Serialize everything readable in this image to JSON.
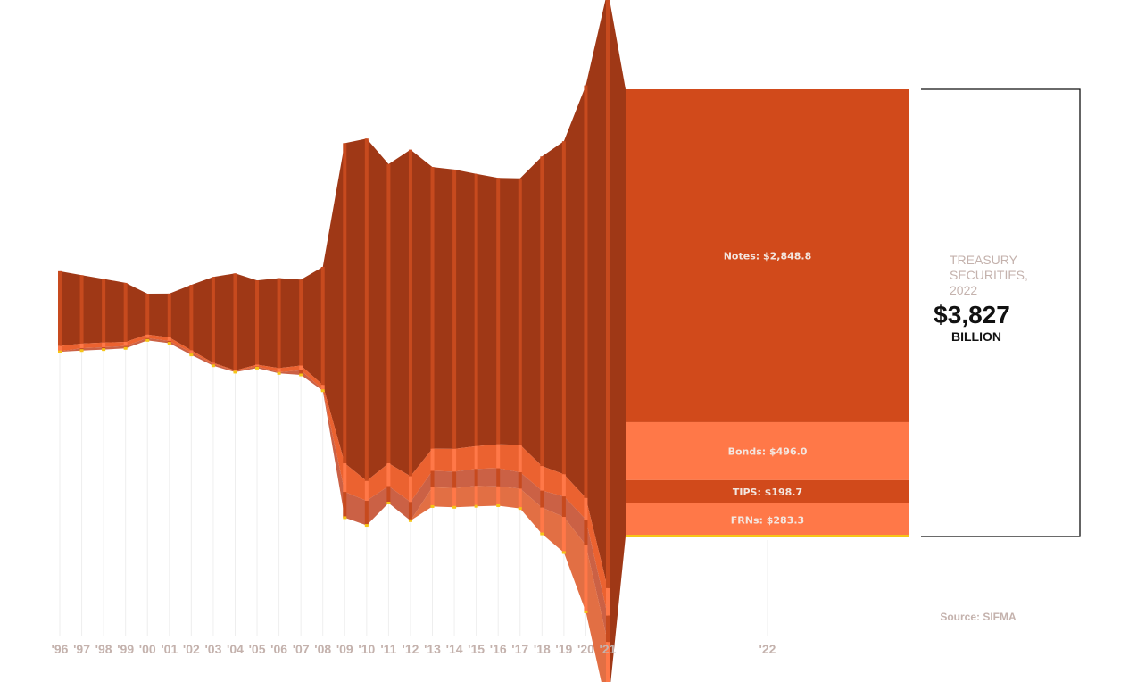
{
  "chart_data": {
    "type": "area",
    "x": [
      "'96",
      "'97",
      "'98",
      "'99",
      "'00",
      "'01",
      "'02",
      "'03",
      "'04",
      "'05",
      "'06",
      "'07",
      "'08",
      "'09",
      "'10",
      "'11",
      "'12",
      "'13",
      "'14",
      "'15",
      "'16",
      "'17",
      "'18",
      "'19",
      "'20",
      "'21"
    ],
    "series": [
      {
        "name": "Notes",
        "values": [
          640,
          585,
          545,
          505,
          350,
          375,
          560,
          735,
          830,
          720,
          770,
          735,
          1010,
          2740,
          2930,
          2560,
          2795,
          2410,
          2390,
          2330,
          2280,
          2280,
          2650,
          2850,
          3530,
          5120
        ]
      },
      {
        "name": "Bonds",
        "values": [
          45,
          40,
          40,
          35,
          30,
          30,
          20,
          10,
          5,
          15,
          35,
          40,
          40,
          245,
          170,
          195,
          220,
          190,
          195,
          195,
          205,
          235,
          210,
          190,
          185,
          235
        ]
      },
      {
        "name": "TIPS",
        "values": [
          5,
          20,
          20,
          20,
          20,
          20,
          20,
          15,
          10,
          15,
          10,
          40,
          10,
          220,
          210,
          145,
          160,
          140,
          140,
          145,
          155,
          140,
          145,
          175,
          220,
          225
        ]
      },
      {
        "name": "FRNs",
        "values": [
          0,
          0,
          0,
          0,
          0,
          0,
          0,
          0,
          0,
          0,
          0,
          0,
          0,
          0,
          0,
          0,
          0,
          165,
          165,
          175,
          165,
          170,
          225,
          305,
          570,
          590
        ]
      }
    ],
    "highlight_year": {
      "label": "'22",
      "segments": [
        {
          "name": "Notes",
          "label": "Notes: $2,848.8",
          "value": 2848.8,
          "color": "#d14a1b"
        },
        {
          "name": "Bonds",
          "label": "Bonds: $496.0",
          "value": 496.0,
          "color": "#ff7848"
        },
        {
          "name": "TIPS",
          "label": "TIPS: $198.7",
          "value": 198.7,
          "color": "#d14a1b"
        },
        {
          "name": "FRNs",
          "label": "FRNs: $283.3",
          "value": 283.3,
          "color": "#ff7848"
        }
      ]
    },
    "stream_colors": [
      "#9f3816",
      "#ea5a25",
      "#c8583b",
      "#e0673a"
    ],
    "bar_colors": [
      "#c74a1e",
      "#ff7848",
      "#c74a1e",
      "#ff7848"
    ],
    "bottom_accent_color": "#f5c518",
    "grid": false
  },
  "annotation": {
    "title_lines": [
      "TREASURY",
      "SECURITIES,",
      "2022"
    ],
    "total": "$3,827",
    "unit": "BILLION"
  },
  "source": "Source: SIFMA"
}
